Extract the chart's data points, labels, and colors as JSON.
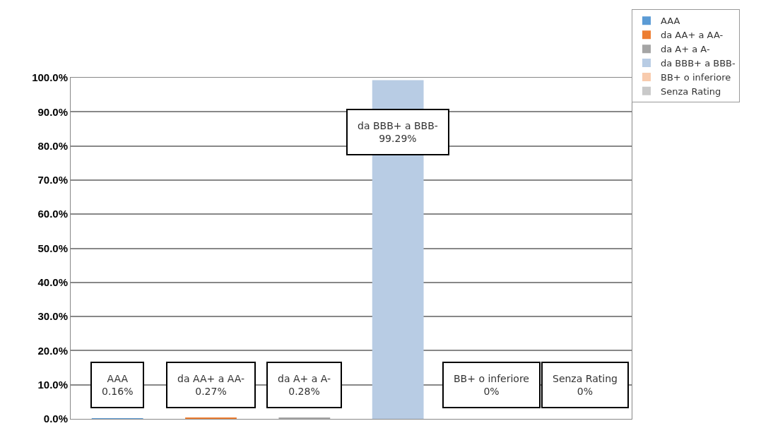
{
  "chart_data": {
    "type": "bar",
    "categories": [
      null,
      null,
      null,
      null,
      null,
      null
    ],
    "series": [
      {
        "name": "AAA",
        "color": "#5b9bd5",
        "values": [
          0.16,
          null,
          null,
          null,
          null,
          null
        ],
        "value_labels": [
          "0.16%",
          null,
          null,
          null,
          null,
          null
        ]
      },
      {
        "name": "da AA+ a AA-",
        "color": "#ed7d31",
        "values": [
          null,
          0.27,
          null,
          null,
          null,
          null
        ],
        "value_labels": [
          null,
          "0.27%",
          null,
          null,
          null,
          null
        ]
      },
      {
        "name": "da A+ a A-",
        "color": "#a5a5a5",
        "values": [
          null,
          null,
          0.28,
          null,
          null,
          null
        ],
        "value_labels": [
          null,
          null,
          "0.28%",
          null,
          null,
          null
        ]
      },
      {
        "name": "da BBB+ a BBB-",
        "color": "#b8cce4",
        "values": [
          null,
          null,
          null,
          99.29,
          null,
          null
        ],
        "value_labels": [
          null,
          null,
          null,
          "99.29%",
          null,
          null
        ]
      },
      {
        "name": "BB+ o inferiore",
        "color": "#f8cbad",
        "values": [
          null,
          null,
          null,
          null,
          0,
          null
        ],
        "value_labels": [
          null,
          null,
          null,
          null,
          "0%",
          null
        ]
      },
      {
        "name": "Senza Rating",
        "color": "#c9c9c9",
        "values": [
          null,
          null,
          null,
          null,
          null,
          0
        ],
        "value_labels": [
          null,
          null,
          null,
          null,
          null,
          "0%"
        ]
      }
    ],
    "ylim": [
      0,
      100
    ],
    "yticks": [
      {
        "value": 0,
        "label": "0.0%"
      },
      {
        "value": 10,
        "label": "10.0%"
      },
      {
        "value": 20,
        "label": "20.0%"
      },
      {
        "value": 30,
        "label": "30.0%"
      },
      {
        "value": 40,
        "label": "40.0%"
      },
      {
        "value": 50,
        "label": "50.0%"
      },
      {
        "value": 60,
        "label": "60.0%"
      },
      {
        "value": 70,
        "label": "70.0%"
      },
      {
        "value": 80,
        "label": "80.0%"
      },
      {
        "value": 90,
        "label": "90.0%"
      },
      {
        "value": 100,
        "label": "100.0%"
      }
    ],
    "grid": "y",
    "legend": "top right"
  }
}
